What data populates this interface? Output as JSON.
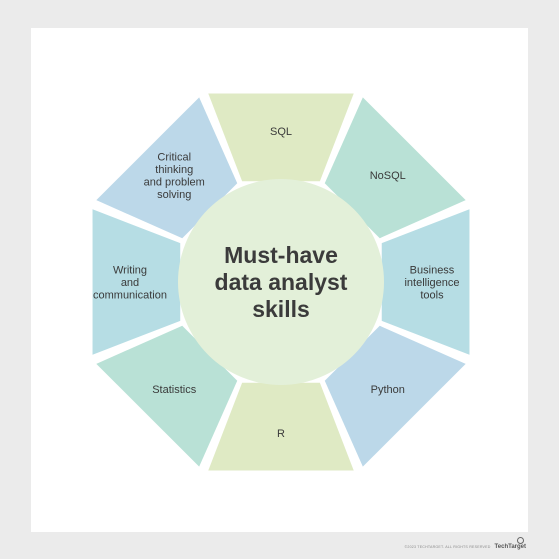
{
  "center": {
    "lines": [
      "Must-have",
      "data analyst",
      "skills"
    ]
  },
  "segments": [
    {
      "lines": [
        "SQL"
      ],
      "color": "#dfeac4"
    },
    {
      "lines": [
        "NoSQL"
      ],
      "color": "#b9e1d6"
    },
    {
      "lines": [
        "Business",
        "intelligence",
        "tools"
      ],
      "color": "#b6dde4"
    },
    {
      "lines": [
        "Python"
      ],
      "color": "#bcd8e9"
    },
    {
      "lines": [
        "R"
      ],
      "color": "#dfeac4"
    },
    {
      "lines": [
        "Statistics"
      ],
      "color": "#b9e1d6"
    },
    {
      "lines": [
        "Writing",
        "and",
        "communication"
      ],
      "color": "#b6dde4"
    },
    {
      "lines": [
        "Critical",
        "thinking",
        "and problem",
        "solving"
      ],
      "color": "#bcd8e9"
    }
  ],
  "colors": {
    "center_fill": "#e3f0d9",
    "page_background": "#ebebeb",
    "panel_background": "#ffffff"
  },
  "footer": {
    "copyright": "©2023 TECHTARGET. ALL RIGHTS RESERVED",
    "logo": "TechTarget"
  }
}
